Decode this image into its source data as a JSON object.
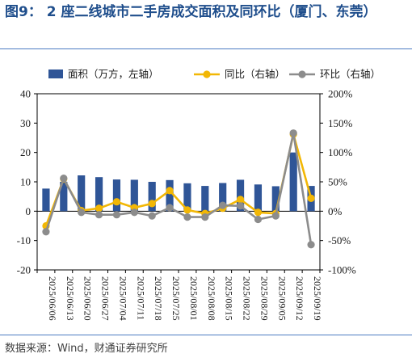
{
  "title": "图9：  2 座二线城市二手房成交面积及同环比（厦门、东莞）",
  "source": "数据来源：Wind，财通证券研究所",
  "colors": {
    "bar": "#2f5597",
    "yoy": "#f2b705",
    "mom": "#8c8c8c",
    "rule": "#4d7cc2",
    "title": "#1f4e8c"
  },
  "chart_data": {
    "type": "bar",
    "categories": [
      "2025/06/06",
      "2025/06/13",
      "2025/06/20",
      "2025/06/27",
      "2025/07/04",
      "2025/07/11",
      "2025/07/18",
      "2025/07/25",
      "2025/08/01",
      "2025/08/08",
      "2025/08/15",
      "2025/08/22",
      "2025/08/29",
      "2025/09/05",
      "2025/09/12",
      "2025/09/19"
    ],
    "legend": {
      "position": "top",
      "items": [
        "面积（万方，左轴）",
        "同比（右轴）",
        "环比（右轴）"
      ]
    },
    "y_left": {
      "ylim": [
        -20,
        40
      ],
      "ticks": [
        "-20",
        "-10",
        "0",
        "10",
        "20",
        "30",
        "40"
      ]
    },
    "y_right": {
      "ylim": [
        -100,
        200
      ],
      "ticks": [
        "-100%",
        "-50%",
        "0%",
        "50%",
        "100%",
        "150%",
        "200%"
      ]
    },
    "series": [
      {
        "name": "面积（万方，左轴）",
        "type": "bar",
        "axis": "left",
        "values": [
          7.7,
          10.0,
          12.2,
          11.6,
          10.8,
          10.7,
          10.0,
          10.6,
          9.5,
          8.6,
          9.6,
          10.7,
          9.1,
          8.5,
          20.0,
          8.6
        ]
      },
      {
        "name": "同比（右轴）",
        "type": "line",
        "axis": "right",
        "values": [
          -25,
          55,
          1,
          5,
          16,
          6,
          13,
          35,
          2,
          -4,
          5,
          20,
          -2,
          -4,
          131,
          22
        ]
      },
      {
        "name": "环比（右轴）",
        "type": "line",
        "axis": "right",
        "values": [
          -35,
          56,
          -2,
          -6,
          -6,
          -2,
          -8,
          6,
          -10,
          -10,
          10,
          9,
          -14,
          -8,
          133,
          -57
        ]
      }
    ]
  }
}
